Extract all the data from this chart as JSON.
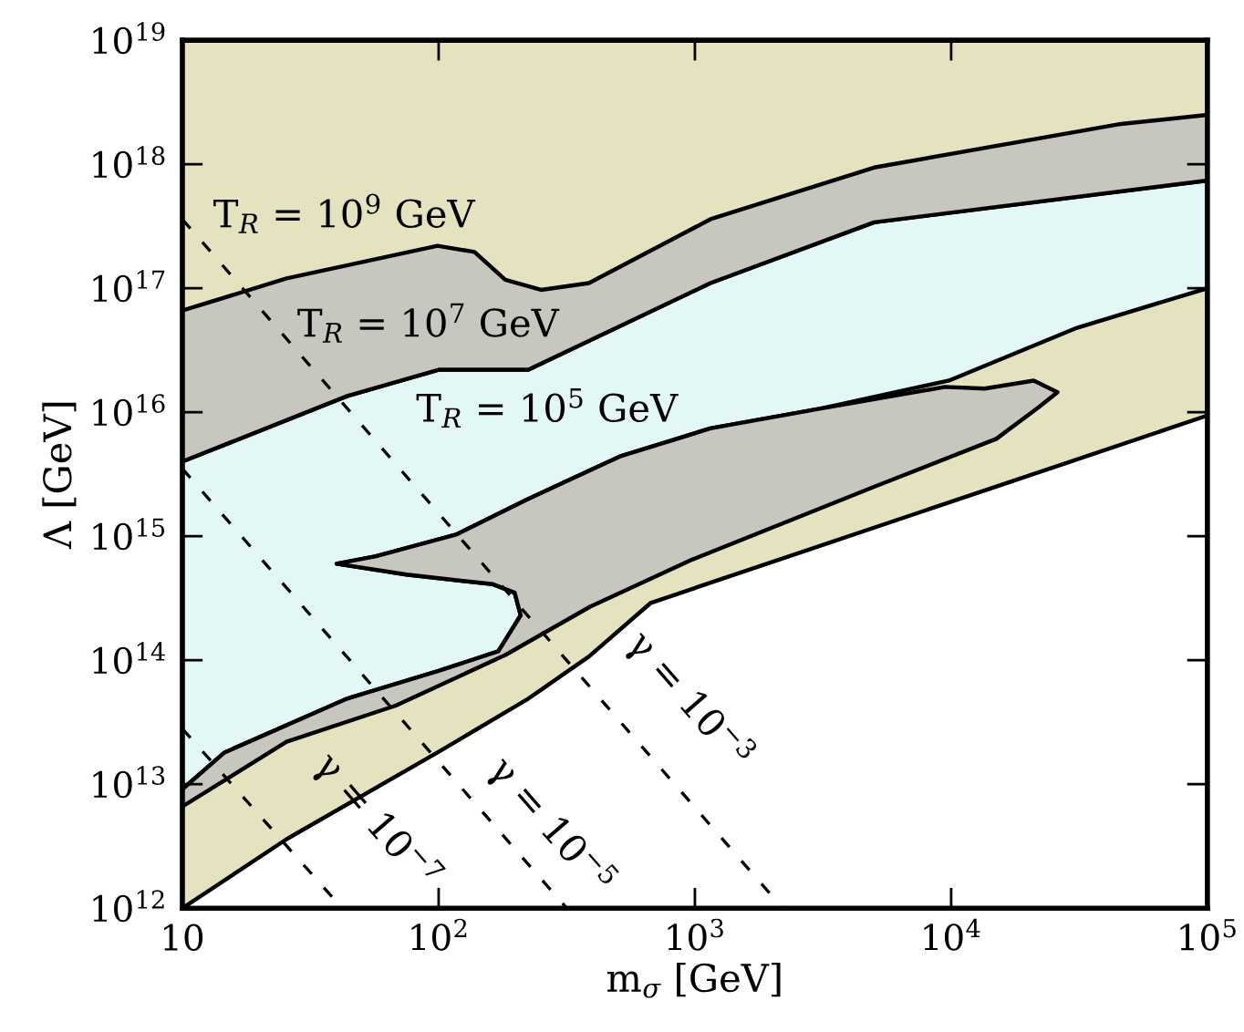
{
  "chart_data": {
    "type": "area",
    "xlabel": "m$_{σ}$ [GeV]",
    "ylabel": "Λ [GeV]",
    "log": "xy",
    "xlim": [
      10,
      100000
    ],
    "ylim": [
      1000000000000.0,
      1e+19
    ],
    "xticks": [
      {
        "value": 10,
        "label": "10"
      },
      {
        "value": 100,
        "label": "10$^{2}$"
      },
      {
        "value": 1000,
        "label": "10$^{3}$"
      },
      {
        "value": 10000,
        "label": "10$^{4}$"
      },
      {
        "value": 100000,
        "label": "10$^{5}$"
      }
    ],
    "yticks": [
      {
        "value": 1000000000000.0,
        "label": "10$^{12}$"
      },
      {
        "value": 10000000000000.0,
        "label": "10$^{13}$"
      },
      {
        "value": 100000000000000.0,
        "label": "10$^{14}$"
      },
      {
        "value": 1000000000000000.0,
        "label": "10$^{15}$"
      },
      {
        "value": 1e+16,
        "label": "10$^{16}$"
      },
      {
        "value": 1e+17,
        "label": "10$^{17}$"
      },
      {
        "value": 1e+18,
        "label": "10$^{18}$"
      },
      {
        "value": 1e+19,
        "label": "10$^{19}$"
      }
    ],
    "grid": false,
    "legend": false,
    "series": [
      {
        "color": "#e4e2bf",
        "x": [
          10,
          25.5,
          99,
          224,
          386,
          673,
          1600,
          100000,
          100000,
          10
        ],
        "values": [
          1000000000000.0,
          3600000000000.0,
          18000000000000.0,
          49000000000000.0,
          107000000000000.0,
          290000000000000.0,
          530000000000000.0,
          9400000000000000.0,
          1e+19,
          1e+19
        ]
      },
      {
        "color": "#e3f7f6",
        "x": [
          10,
          14.6,
          44,
          100,
          171,
          209,
          198,
          163,
          75,
          40,
          57,
          117,
          224,
          510,
          1150,
          3100,
          9800,
          31000,
          100000,
          100000,
          5000,
          1150,
          224,
          100,
          44,
          10
        ],
        "values": [
          9100000000000.0,
          18000000000000.0,
          49000000000000.0,
          82000000000000.0,
          118000000000000.0,
          230000000000000.0,
          350000000000000.0,
          410000000000000.0,
          490000000000000.0,
          600000000000000.0,
          690000000000000.0,
          1030000000000000.0,
          2000000000000000.0,
          4400000000000000.0,
          7400000000000000.0,
          1.07e+16,
          1.8e+16,
          4.8e+16,
          1e+17,
          7.4e+17,
          3.4e+17,
          1.1e+17,
          2.2e+16,
          2.2e+16,
          1.35e+16,
          4000000000000000.0
        ]
      },
      {
        "color": "#c7c7bf",
        "x": [
          10,
          44,
          100,
          224,
          1150,
          5000,
          100000,
          100000,
          45000,
          5000,
          1150,
          386,
          251,
          182,
          138,
          99,
          25.5,
          10
        ],
        "values": [
          4000000000000000.0,
          1.35e+16,
          2.2e+16,
          2.2e+16,
          1.1e+17,
          3.4e+17,
          7.4e+17,
          2.5e+18,
          2.1e+18,
          9.4e+17,
          3.6e+17,
          1.1e+17,
          9.7e+16,
          1.17e+17,
          1.96e+17,
          2.2e+17,
          1.2e+17,
          6.6e+16
        ]
      },
      {
        "color": "#c7c7bf",
        "x": [
          10,
          25.5,
          68,
          182,
          390,
          980,
          5000,
          15000,
          22000,
          26000,
          21000,
          13500,
          9450,
          3100,
          1150,
          510,
          224,
          117,
          57,
          40,
          75,
          163,
          198,
          209,
          171,
          100,
          44,
          14.6,
          10
        ],
        "values": [
          6600000000000.0,
          22000000000000.0,
          43000000000000.0,
          110000000000000.0,
          270000000000000.0,
          650000000000000.0,
          2500000000000000.0,
          6100000000000000.0,
          1.1e+16,
          1.45e+16,
          1.8e+16,
          1.55e+16,
          1.6e+16,
          1.07e+16,
          7400000000000000.0,
          4400000000000000.0,
          2000000000000000.0,
          1030000000000000.0,
          690000000000000.0,
          600000000000000.0,
          490000000000000.0,
          410000000000000.0,
          350000000000000.0,
          230000000000000.0,
          118000000000000.0,
          82000000000000.0,
          49000000000000.0,
          18000000000000.0,
          9100000000000.0
        ]
      },
      {
        "type": "line",
        "color": "#000000",
        "line_style": "dashed",
        "x": [
          10,
          42
        ],
        "values": [
          28000000000000.0,
          1000000000000.0
        ]
      },
      {
        "type": "line",
        "color": "#000000",
        "line_style": "dashed",
        "x": [
          10,
          316
        ],
        "values": [
          3500000000000000.0,
          1000000000000.0
        ]
      },
      {
        "type": "line",
        "color": "#000000",
        "line_style": "dashed",
        "x": [
          10,
          2200
        ],
        "values": [
          3.6e+17,
          1000000000000.0
        ]
      }
    ],
    "annotations": [
      "T$_{R}$ = 10$^{9}$ GeV",
      "T$_{R}$ = 10$^{7}$ GeV",
      "T$_{R}$ = 10$^{5}$ GeV",
      "γ = 10$^{−7}$",
      "γ = 10$^{−5}$",
      "γ = 10$^{−3}$"
    ]
  }
}
